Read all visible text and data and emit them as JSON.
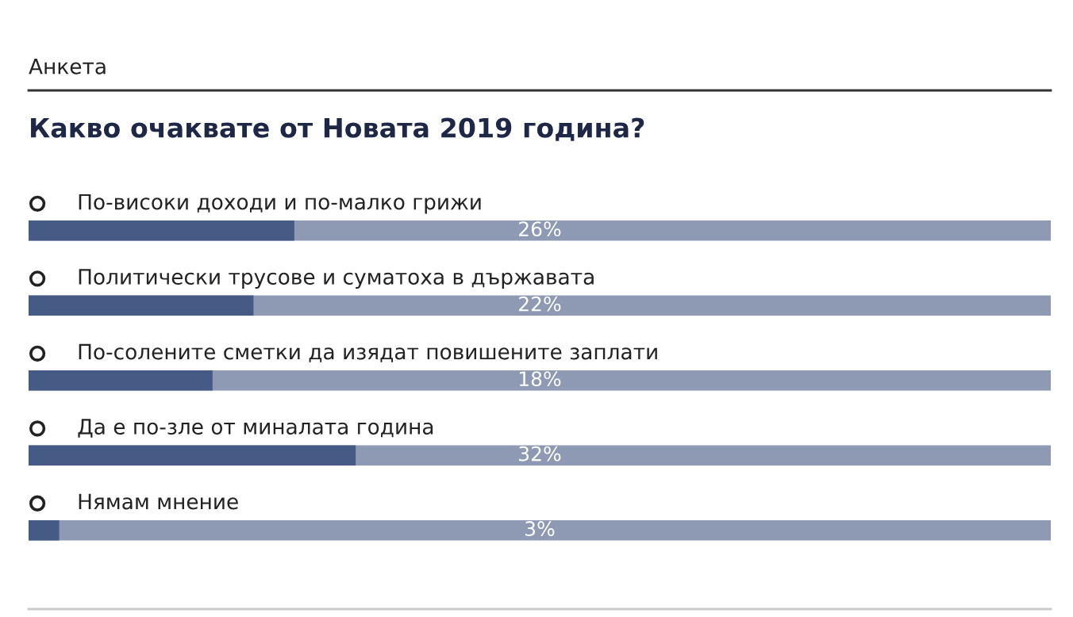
{
  "chart_data": {
    "type": "bar",
    "orientation": "horizontal",
    "subtitle": "Анкета",
    "title": "Какво очаквате от Новата 2019 година?",
    "categories": [
      "По-високи доходи и по-малко грижи",
      "Политически трусове и суматоха в държавата",
      "По-солените сметки да изядат повишените заплати",
      "Да е по-зле от миналата година",
      "Нямам мнение"
    ],
    "values": [
      26,
      22,
      18,
      32,
      3
    ],
    "color": "#465a86",
    "value_labels": [
      "26%",
      "22%",
      "18%",
      "32%",
      "3%"
    ],
    "xlim": [
      0,
      100
    ]
  }
}
